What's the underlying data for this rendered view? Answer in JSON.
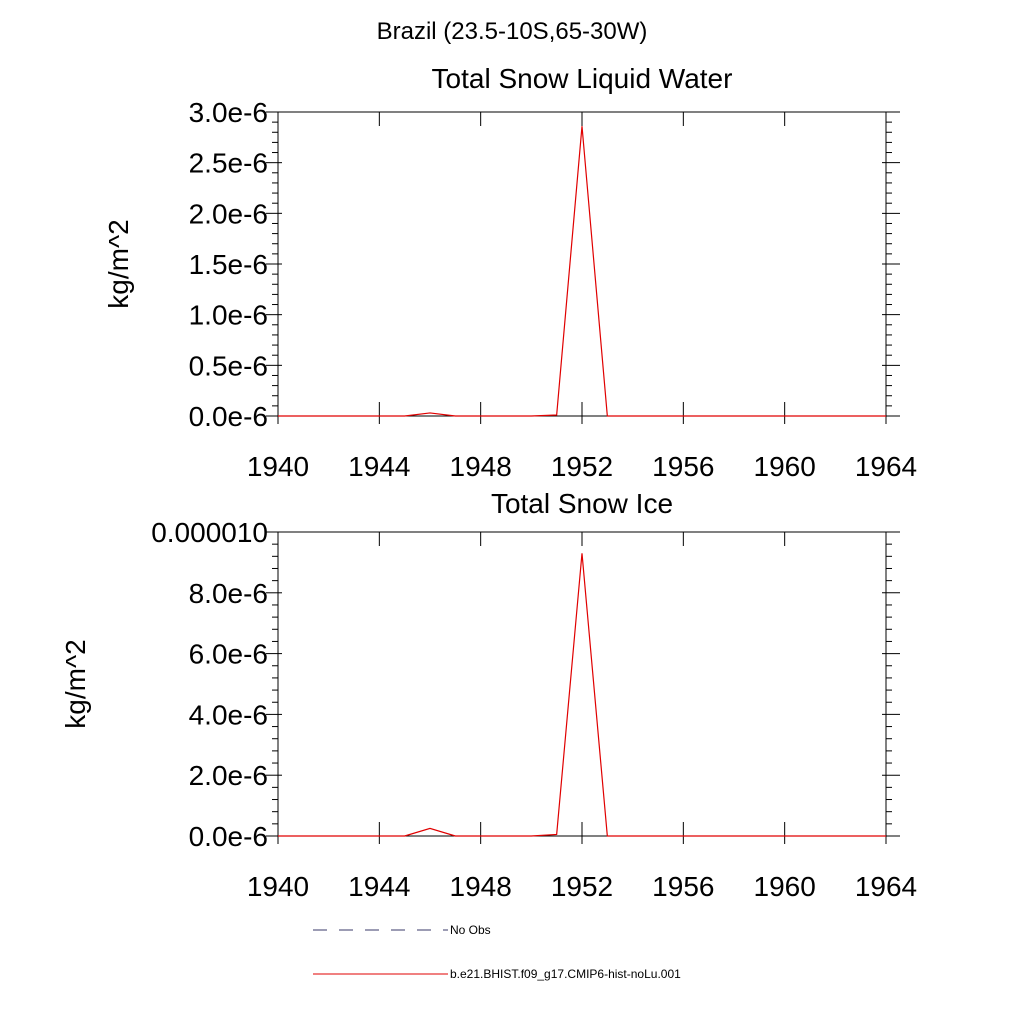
{
  "figure_title": "Brazil (23.5-10S,65-30W)",
  "colors": {
    "model_line": "#e00000",
    "obs_line": "#3a3a6a",
    "axis": "#000000"
  },
  "legend": {
    "entries": [
      {
        "label": "No Obs",
        "style": "dashed",
        "color": "#3a3a6a"
      },
      {
        "label": "b.e21.BHIST.f09_g17.CMIP6-hist-noLu.001",
        "style": "solid",
        "color": "#e00000"
      }
    ]
  },
  "chart_data": [
    {
      "type": "line",
      "title": "Total Snow Liquid Water",
      "xlabel": "",
      "ylabel": "kg/m^2",
      "xlim": [
        1940,
        1964
      ],
      "ylim": [
        0,
        3e-06
      ],
      "xticks": [
        1940,
        1944,
        1948,
        1952,
        1956,
        1960,
        1964
      ],
      "xtick_labels": [
        "1940",
        "1944",
        "1948",
        "1952",
        "1956",
        "1960",
        "1964"
      ],
      "yticks": [
        0,
        5e-07,
        1e-06,
        1.5e-06,
        2e-06,
        2.5e-06,
        3e-06
      ],
      "ytick_labels": [
        "0.0e-6",
        "0.5e-6",
        "1.0e-6",
        "1.5e-6",
        "2.0e-6",
        "2.5e-6",
        "3.0e-6"
      ],
      "grid": false,
      "x": [
        1940,
        1941,
        1942,
        1943,
        1944,
        1945,
        1946,
        1947,
        1948,
        1949,
        1950,
        1951,
        1952,
        1953,
        1954,
        1955,
        1956,
        1957,
        1958,
        1959,
        1960,
        1961,
        1962,
        1963,
        1964
      ],
      "series": [
        {
          "name": "b.e21.BHIST.f09_g17.CMIP6-hist-noLu.001",
          "values": [
            0,
            0,
            0,
            0,
            0,
            0,
            3e-08,
            0,
            0,
            0,
            0,
            1e-08,
            2.86e-06,
            0,
            0,
            0,
            0,
            0,
            0,
            0,
            0,
            0,
            0,
            0,
            0
          ]
        }
      ]
    },
    {
      "type": "line",
      "title": "Total Snow Ice",
      "xlabel": "",
      "ylabel": "kg/m^2",
      "xlim": [
        1940,
        1964
      ],
      "ylim": [
        0,
        1e-05
      ],
      "xticks": [
        1940,
        1944,
        1948,
        1952,
        1956,
        1960,
        1964
      ],
      "xtick_labels": [
        "1940",
        "1944",
        "1948",
        "1952",
        "1956",
        "1960",
        "1964"
      ],
      "yticks": [
        0,
        2e-06,
        4e-06,
        6e-06,
        8e-06,
        1e-05
      ],
      "ytick_labels": [
        "0.0e-6",
        "2.0e-6",
        "4.0e-6",
        "6.0e-6",
        "8.0e-6",
        "0.000010"
      ],
      "grid": false,
      "x": [
        1940,
        1941,
        1942,
        1943,
        1944,
        1945,
        1946,
        1947,
        1948,
        1949,
        1950,
        1951,
        1952,
        1953,
        1954,
        1955,
        1956,
        1957,
        1958,
        1959,
        1960,
        1961,
        1962,
        1963,
        1964
      ],
      "series": [
        {
          "name": "b.e21.BHIST.f09_g17.CMIP6-hist-noLu.001",
          "values": [
            0,
            0,
            0,
            0,
            0,
            0,
            2.5e-07,
            0,
            0,
            0,
            0,
            5e-08,
            9.3e-06,
            0,
            0,
            0,
            0,
            0,
            0,
            0,
            0,
            0,
            0,
            0,
            0
          ]
        }
      ]
    }
  ]
}
